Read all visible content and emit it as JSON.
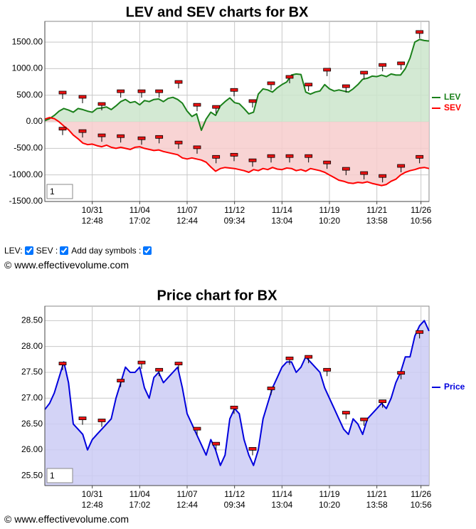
{
  "chart_data": [
    {
      "type": "line",
      "title": "LEV and SEV charts for BX",
      "input_value": "1",
      "area": "zero",
      "grid": true,
      "x": [
        0,
        1,
        2,
        3,
        4,
        5,
        6,
        7,
        8,
        9,
        10,
        11,
        12,
        13,
        14,
        15,
        16,
        17,
        18,
        19,
        20,
        21,
        22,
        23,
        24,
        25,
        26,
        27,
        28,
        29,
        30,
        31,
        32,
        33,
        34,
        35,
        36,
        37,
        38,
        39,
        40,
        41,
        42,
        43,
        44,
        45,
        46,
        47,
        48,
        49,
        50,
        51,
        52,
        53,
        54,
        55,
        56,
        57,
        58,
        59,
        60,
        61,
        62,
        63,
        64,
        65,
        66,
        67,
        68,
        69,
        70,
        71,
        72,
        73,
        74,
        75,
        76,
        77,
        78,
        79,
        80,
        81
      ],
      "xlim": [
        0,
        81
      ],
      "xticks": [
        {
          "value": 10,
          "label": [
            "10/31",
            "12:48"
          ]
        },
        {
          "value": 20,
          "label": [
            "11/04",
            "17:02"
          ]
        },
        {
          "value": 30,
          "label": [
            "11/07",
            "12:44"
          ]
        },
        {
          "value": 40,
          "label": [
            "11/12",
            "09:34"
          ]
        },
        {
          "value": 50,
          "label": [
            "11/14",
            "13:04"
          ]
        },
        {
          "value": 60,
          "label": [
            "11/19",
            "10:20"
          ]
        },
        {
          "value": 70,
          "label": [
            "11/21",
            "13:58"
          ]
        },
        {
          "value": 79.3,
          "label": [
            "11/26",
            "10:56"
          ]
        }
      ],
      "ylim": [
        -1500,
        1890
      ],
      "yticks": [
        {
          "value": 1500,
          "label": "1500.00"
        },
        {
          "value": 1000,
          "label": "1000.00"
        },
        {
          "value": 500,
          "label": "500.00"
        },
        {
          "value": 0,
          "label": "0.00"
        },
        {
          "value": -500,
          "label": "-500.00"
        },
        {
          "value": -1000,
          "label": "-1000.00"
        },
        {
          "value": -1500,
          "label": "-1500.00"
        }
      ],
      "day_symbol_x": [
        3.75,
        7.95,
        12,
        16,
        20.4,
        24.1,
        28.2,
        32.1,
        36.1,
        39.9,
        43.8,
        47.7,
        51.6,
        55.6,
        59.5,
        63.5,
        67.3,
        71.2,
        75.1,
        79
      ],
      "series": [
        {
          "name": "LEV",
          "color": "#1a801a",
          "fill": "#cbe5cb",
          "values": [
            20,
            60,
            120,
            200,
            250,
            220,
            180,
            250,
            230,
            200,
            180,
            250,
            260,
            280,
            230,
            300,
            380,
            420,
            360,
            380,
            320,
            400,
            380,
            420,
            430,
            380,
            440,
            460,
            420,
            350,
            200,
            100,
            150,
            -160,
            50,
            180,
            120,
            300,
            380,
            450,
            360,
            340,
            250,
            150,
            180,
            520,
            620,
            600,
            560,
            640,
            700,
            750,
            880,
            900,
            890,
            560,
            520,
            560,
            580,
            700,
            620,
            580,
            600,
            580,
            560,
            620,
            700,
            800,
            820,
            860,
            850,
            880,
            850,
            900,
            880,
            880,
            1000,
            1200,
            1500,
            1550,
            1530,
            1520
          ],
          "day_symbols": [
            550,
            470,
            335,
            575,
            575,
            575,
            750,
            320,
            280,
            600,
            390,
            725,
            845,
            700,
            980,
            670,
            925,
            1070,
            1100,
            1690
          ]
        },
        {
          "name": "SEV",
          "color": "#ff0000",
          "fill": "#f7cdcd",
          "values": [
            50,
            80,
            60,
            0,
            -80,
            -150,
            -250,
            -320,
            -400,
            -430,
            -420,
            -450,
            -470,
            -440,
            -480,
            -500,
            -480,
            -500,
            -520,
            -480,
            -470,
            -500,
            -520,
            -540,
            -530,
            -560,
            -580,
            -600,
            -620,
            -680,
            -700,
            -680,
            -700,
            -720,
            -760,
            -850,
            -930,
            -880,
            -860,
            -870,
            -880,
            -900,
            -920,
            -950,
            -900,
            -920,
            -880,
            -900,
            -860,
            -890,
            -900,
            -870,
            -880,
            -920,
            -900,
            -930,
            -880,
            -900,
            -920,
            -950,
            -1000,
            -1050,
            -1100,
            -1120,
            -1150,
            -1160,
            -1140,
            -1150,
            -1130,
            -1160,
            -1180,
            -1200,
            -1180,
            -1120,
            -1080,
            -1000,
            -950,
            -920,
            -900,
            -870,
            -860,
            -880
          ],
          "day_symbols": [
            -130,
            -175,
            -255,
            -270,
            -310,
            -285,
            -390,
            -480,
            -660,
            -620,
            -725,
            -645,
            -645,
            -645,
            -765,
            -885,
            -965,
            -1020,
            -830,
            -660
          ]
        }
      ]
    },
    {
      "type": "line",
      "title": "Price chart for BX",
      "input_value": "1",
      "area": "bottom",
      "grid": true,
      "x": [
        0,
        1,
        2,
        3,
        4,
        5,
        6,
        7,
        8,
        9,
        10,
        11,
        12,
        13,
        14,
        15,
        16,
        17,
        18,
        19,
        20,
        21,
        22,
        23,
        24,
        25,
        26,
        27,
        28,
        29,
        30,
        31,
        32,
        33,
        34,
        35,
        36,
        37,
        38,
        39,
        40,
        41,
        42,
        43,
        44,
        45,
        46,
        47,
        48,
        49,
        50,
        51,
        52,
        53,
        54,
        55,
        56,
        57,
        58,
        59,
        60,
        61,
        62,
        63,
        64,
        65,
        66,
        67,
        68,
        69,
        70,
        71,
        72,
        73,
        74,
        75,
        76,
        77,
        78,
        79,
        80,
        81
      ],
      "xlim": [
        0,
        81
      ],
      "xticks": [
        {
          "value": 10,
          "label": [
            "10/31",
            "12:48"
          ]
        },
        {
          "value": 20,
          "label": [
            "11/04",
            "17:02"
          ]
        },
        {
          "value": 30,
          "label": [
            "11/07",
            "12:44"
          ]
        },
        {
          "value": 40,
          "label": [
            "11/12",
            "09:34"
          ]
        },
        {
          "value": 50,
          "label": [
            "11/14",
            "13:04"
          ]
        },
        {
          "value": 60,
          "label": [
            "11/19",
            "10:20"
          ]
        },
        {
          "value": 70,
          "label": [
            "11/21",
            "13:58"
          ]
        },
        {
          "value": 79.3,
          "label": [
            "11/26",
            "10:56"
          ]
        }
      ],
      "ylim": [
        25.31,
        28.78
      ],
      "yticks": [
        {
          "value": 28.5,
          "label": "28.50"
        },
        {
          "value": 28,
          "label": "28.00"
        },
        {
          "value": 27.5,
          "label": "27.50"
        },
        {
          "value": 27,
          "label": "27.00"
        },
        {
          "value": 26.5,
          "label": "26.50"
        },
        {
          "value": 26,
          "label": "26.00"
        },
        {
          "value": 25.5,
          "label": "25.50"
        }
      ],
      "day_symbol_x": [
        3.75,
        7.95,
        12,
        16,
        20.4,
        24.1,
        28.2,
        32.1,
        36.1,
        39.9,
        43.8,
        47.7,
        51.6,
        55.6,
        59.5,
        63.5,
        67.3,
        71.2,
        75.1,
        79
      ],
      "series": [
        {
          "name": "Price",
          "color": "#0000dd",
          "fill": "#cbcbf5",
          "values": [
            26.78,
            26.9,
            27.1,
            27.4,
            27.7,
            27.3,
            26.5,
            26.4,
            26.3,
            26.0,
            26.2,
            26.3,
            26.4,
            26.5,
            26.6,
            27.0,
            27.3,
            27.6,
            27.5,
            27.5,
            27.6,
            27.2,
            27.0,
            27.4,
            27.5,
            27.3,
            27.4,
            27.5,
            27.6,
            27.2,
            26.7,
            26.5,
            26.3,
            26.1,
            25.9,
            26.2,
            26.0,
            25.7,
            25.9,
            26.6,
            26.8,
            26.7,
            26.2,
            25.9,
            25.7,
            26.0,
            26.6,
            26.9,
            27.2,
            27.4,
            27.6,
            27.7,
            27.7,
            27.5,
            27.6,
            27.8,
            27.7,
            27.6,
            27.5,
            27.2,
            27.0,
            26.8,
            26.6,
            26.4,
            26.3,
            26.6,
            26.5,
            26.3,
            26.6,
            26.7,
            26.8,
            26.9,
            26.8,
            27.0,
            27.3,
            27.5,
            27.8,
            27.8,
            28.2,
            28.4,
            28.5,
            28.3
          ],
          "day_symbols": [
            27.67,
            26.61,
            26.57,
            27.34,
            27.69,
            27.55,
            27.67,
            26.41,
            26.12,
            26.82,
            26.02,
            27.19,
            27.77,
            27.8,
            27.55,
            26.72,
            26.59,
            26.94,
            27.49,
            28.28
          ]
        }
      ]
    }
  ],
  "controls": [
    "LEV:",
    "SEV :",
    "Add day symbols :"
  ],
  "credits": [
    "© www.effectivevolume.com",
    "© www.effectivevolume.com"
  ]
}
